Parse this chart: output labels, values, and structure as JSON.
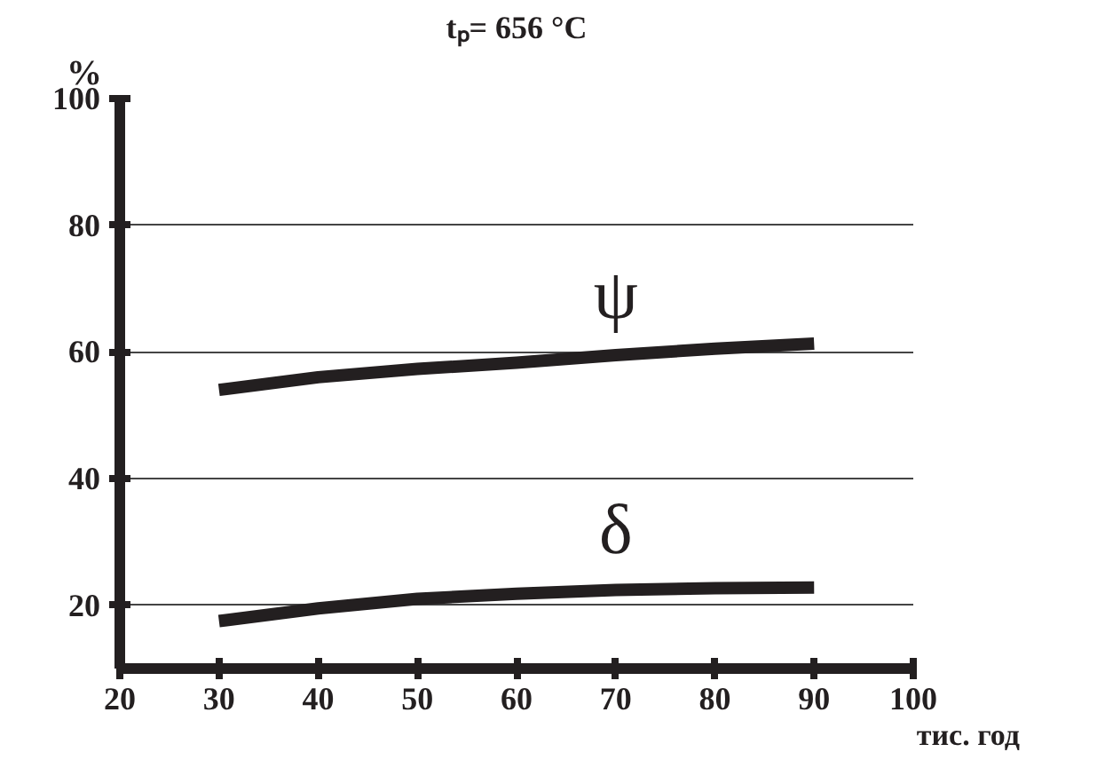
{
  "chart_data": {
    "type": "line",
    "title": "tₚ= 656 °C",
    "xlabel": "тис. год",
    "ylabel": "%",
    "x": [
      30,
      40,
      50,
      60,
      70,
      80,
      90
    ],
    "series": [
      {
        "name": "ψ",
        "color": "#231f20",
        "values": [
          54,
          56,
          57.3,
          58.3,
          59.5,
          60.5,
          61.3
        ]
      },
      {
        "name": "δ",
        "color": "#231f20",
        "values": [
          17.5,
          19.5,
          21,
          21.8,
          22.4,
          22.7,
          22.8
        ]
      }
    ],
    "xlim": [
      20,
      100
    ],
    "xticks": [
      20,
      30,
      40,
      50,
      60,
      70,
      80,
      90,
      100
    ],
    "ylim": [
      10,
      100
    ],
    "yticks": [
      20,
      40,
      60,
      80,
      100
    ],
    "grid": "y",
    "marker": "none",
    "line_style": "solid"
  }
}
